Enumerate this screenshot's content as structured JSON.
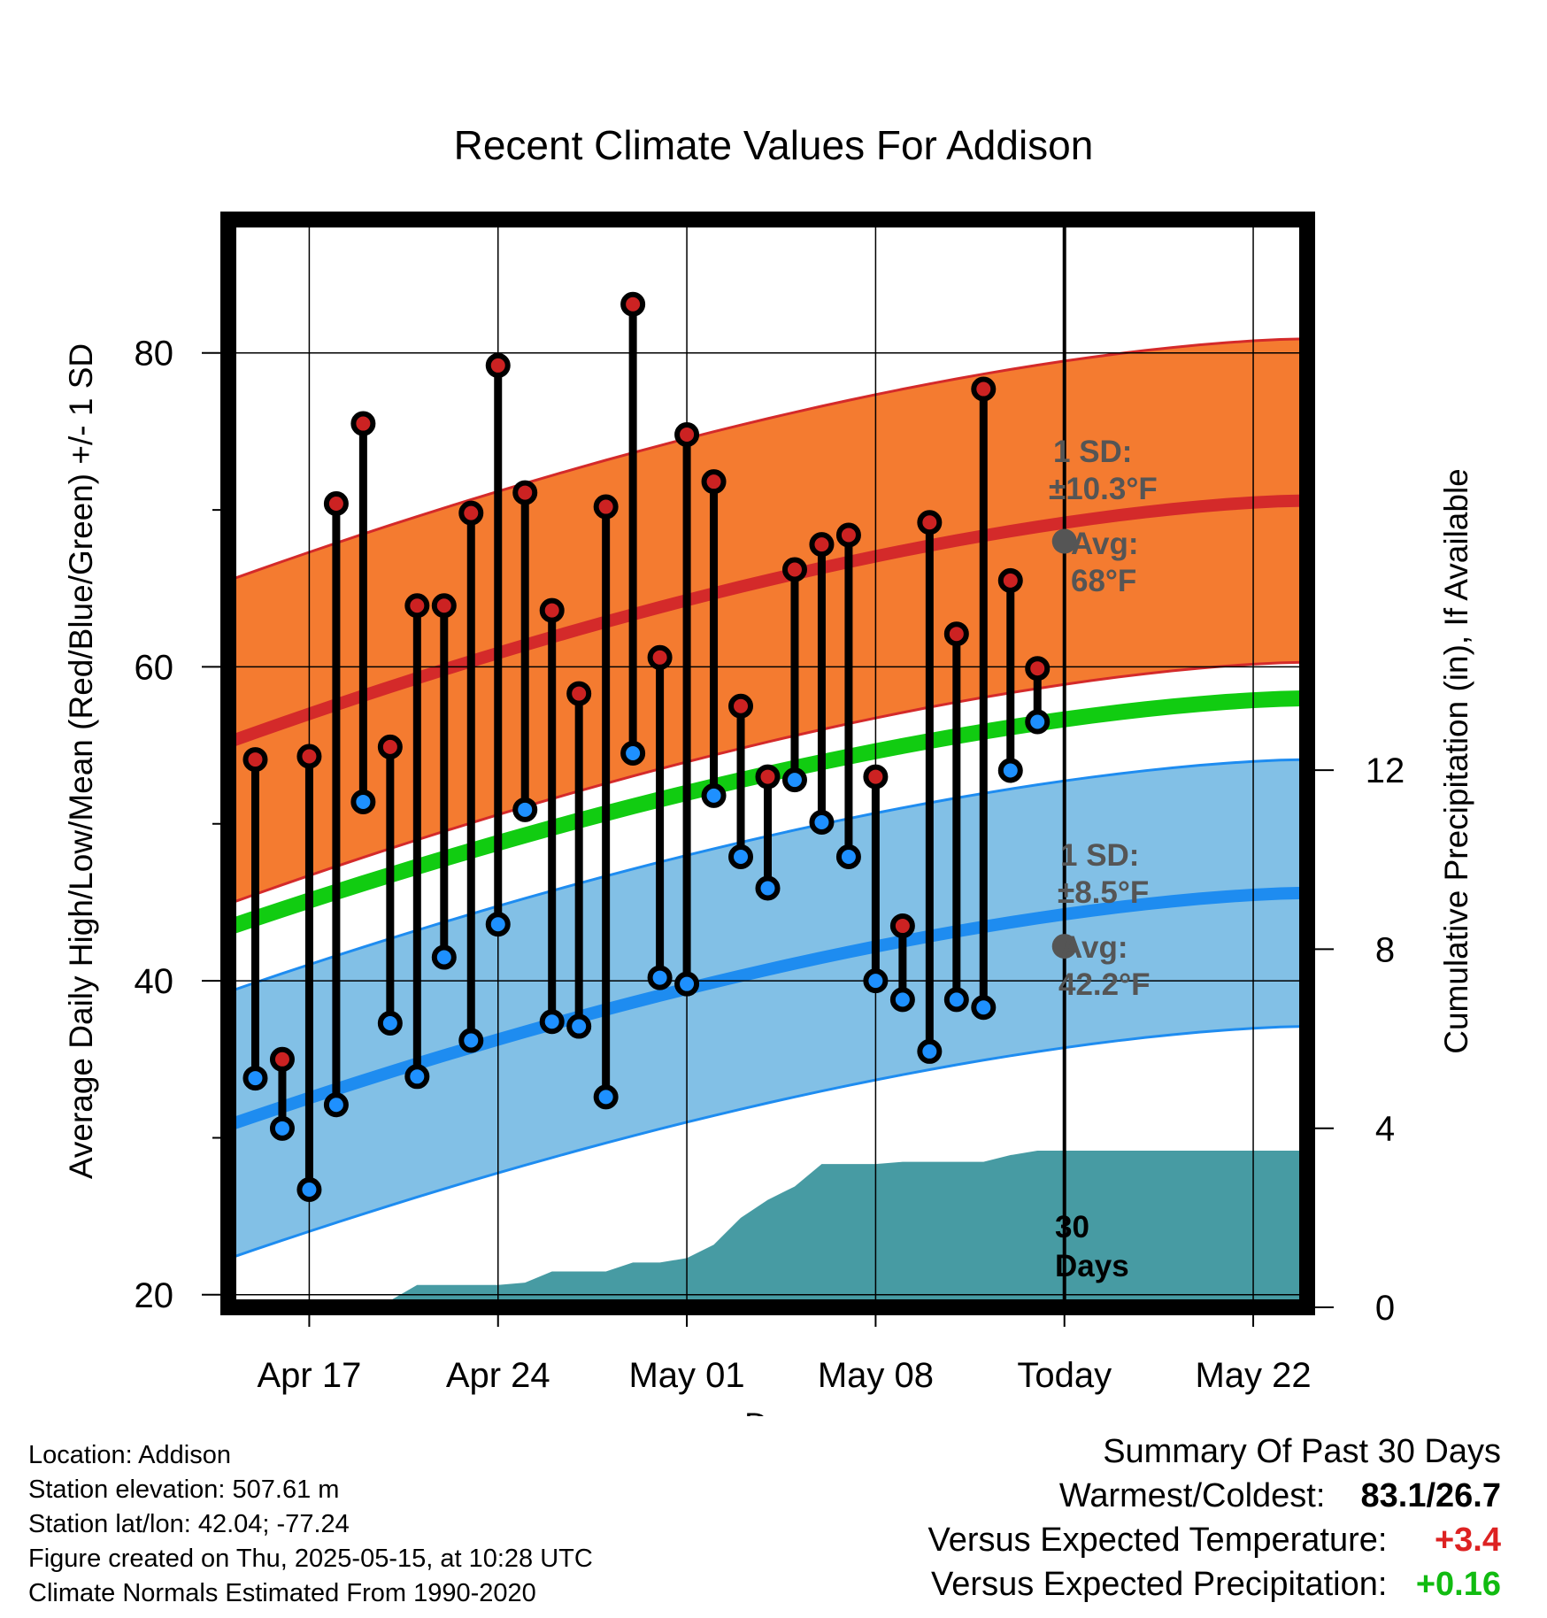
{
  "chart_data": {
    "type": "line",
    "title": "Recent Climate Values For Addison",
    "xlabel": "Day",
    "ylabel": "Average Daily High/Low/Mean (Red/Blue/Green) +/- 1 SD",
    "y2label": "Cumulative Precipitation (in), If Available",
    "x_tick_labels": [
      "Apr 17",
      "Apr 24",
      "May 01",
      "May 08",
      "Today",
      "May 22"
    ],
    "y_ticks": [
      20,
      40,
      60,
      80
    ],
    "y2_ticks": [
      0,
      4,
      8,
      12
    ],
    "ylim": [
      19.2,
      88.5
    ],
    "y2lim": [
      0,
      24.3
    ],
    "xlim_days": [
      "2025-04-14",
      "2025-05-24"
    ],
    "grid": true,
    "today": "2025-05-15",
    "period_label": "30 Days",
    "normals": {
      "high_avg": [
        55.2,
        70.6
      ],
      "high_sd": 10.3,
      "low_avg": [
        30.8,
        45.6
      ],
      "low_sd": 8.5,
      "mean_avg": [
        43.4,
        58.0
      ]
    },
    "today_annotations": {
      "high_sd_text": [
        "1 SD:",
        "±10.3°F"
      ],
      "high_avg_text": [
        "Avg:",
        "68°F"
      ],
      "low_sd_text": [
        "1 SD:",
        "±8.5°F"
      ],
      "low_avg_text": [
        "Avg:",
        "42.2°F"
      ],
      "high_avg_value": 68,
      "low_avg_value": 42.2
    },
    "daily": {
      "dates": [
        "2025-04-15",
        "2025-04-16",
        "2025-04-17",
        "2025-04-18",
        "2025-04-19",
        "2025-04-20",
        "2025-04-21",
        "2025-04-22",
        "2025-04-23",
        "2025-04-24",
        "2025-04-25",
        "2025-04-26",
        "2025-04-27",
        "2025-04-28",
        "2025-04-29",
        "2025-04-30",
        "2025-05-01",
        "2025-05-02",
        "2025-05-03",
        "2025-05-04",
        "2025-05-05",
        "2025-05-06",
        "2025-05-07",
        "2025-05-08",
        "2025-05-09",
        "2025-05-10",
        "2025-05-11",
        "2025-05-12",
        "2025-05-13",
        "2025-05-14"
      ],
      "high": [
        54.1,
        35.0,
        54.3,
        70.4,
        75.5,
        54.9,
        63.9,
        63.9,
        69.8,
        79.2,
        71.1,
        63.6,
        58.3,
        70.2,
        83.1,
        60.6,
        74.8,
        71.8,
        57.5,
        53.0,
        66.2,
        67.8,
        68.4,
        53.0,
        43.5,
        69.2,
        62.1,
        77.7,
        65.5,
        59.9
      ],
      "low": [
        33.8,
        30.6,
        26.7,
        32.1,
        51.4,
        37.3,
        33.9,
        41.5,
        36.2,
        43.6,
        50.9,
        37.4,
        37.1,
        32.6,
        54.5,
        40.2,
        39.8,
        51.8,
        47.9,
        45.9,
        52.8,
        50.1,
        47.9,
        40.0,
        38.8,
        35.5,
        38.8,
        38.3,
        53.4,
        56.5
      ]
    },
    "precip_cumulative": {
      "dates": [
        "2025-04-14",
        "2025-04-18",
        "2025-04-19",
        "2025-04-20",
        "2025-04-21",
        "2025-04-22",
        "2025-04-23",
        "2025-04-24",
        "2025-04-25",
        "2025-04-26",
        "2025-04-27",
        "2025-04-28",
        "2025-04-29",
        "2025-04-30",
        "2025-05-01",
        "2025-05-02",
        "2025-05-03",
        "2025-05-04",
        "2025-05-05",
        "2025-05-06",
        "2025-05-07",
        "2025-05-08",
        "2025-05-09",
        "2025-05-10",
        "2025-05-11",
        "2025-05-12",
        "2025-05-13",
        "2025-05-14",
        "2025-05-15",
        "2025-05-24"
      ],
      "values": [
        0,
        0,
        0.15,
        0.15,
        0.5,
        0.5,
        0.5,
        0.5,
        0.55,
        0.8,
        0.8,
        0.8,
        1.0,
        1.0,
        1.1,
        1.4,
        2.0,
        2.4,
        2.7,
        3.2,
        3.2,
        3.2,
        3.25,
        3.25,
        3.25,
        3.25,
        3.4,
        3.5,
        3.5,
        3.5
      ]
    },
    "colors": {
      "high_band": "#f47b30",
      "high_line": "#d42a2a",
      "low_band": "#82c0e6",
      "low_line": "#1e8cf0",
      "mean_line": "#11cc11",
      "precip": "#479ba3",
      "high_marker": "#cc2222",
      "low_marker": "#1e90ff",
      "annot": "#555555"
    }
  },
  "footer": {
    "lines": [
      "Location: Addison",
      "Station elevation: 507.61 m",
      "Station lat/lon: 42.04; -77.24",
      "Figure created on Thu, 2025-05-15, at 10:28 UTC",
      "Climate Normals Estimated From 1990-2020"
    ]
  },
  "summary": {
    "title": "Summary Of Past 30 Days",
    "warm_cold_label": "Warmest/Coldest:",
    "warm_cold_value": "83.1/26.7",
    "temp_label": "Versus Expected Temperature:",
    "temp_value": "+3.4",
    "temp_color": "#dd2222",
    "precip_label": "Versus Expected Precipitation:",
    "precip_value": "+0.16",
    "precip_color": "#11bb11"
  }
}
